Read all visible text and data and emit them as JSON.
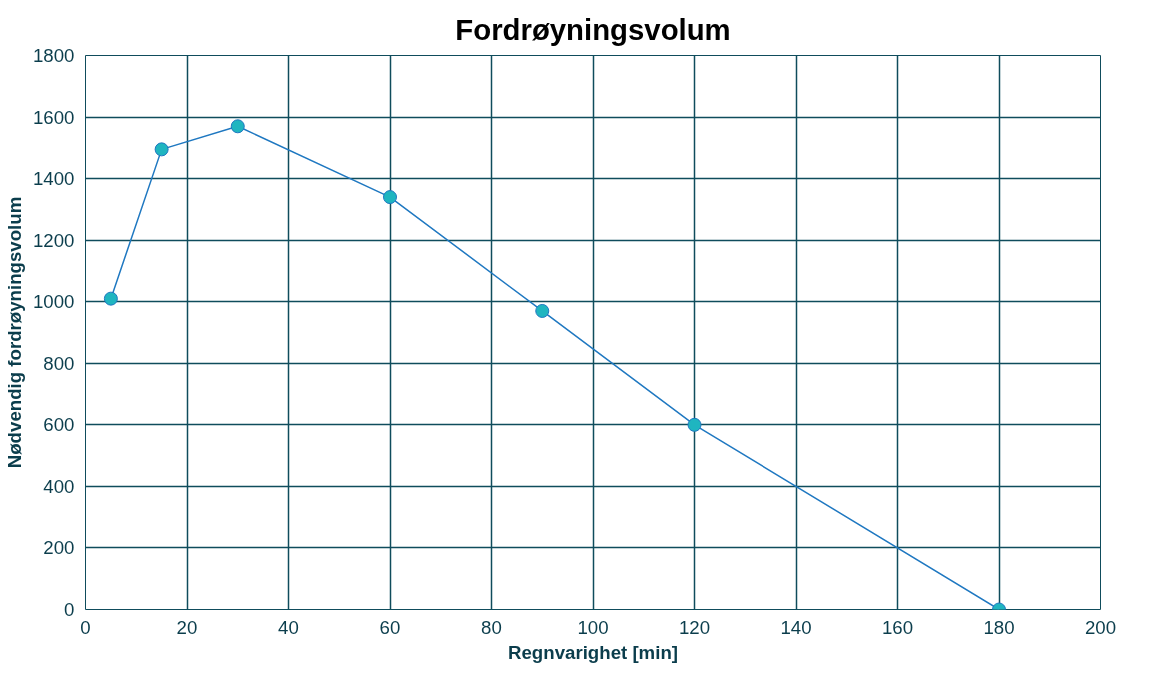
{
  "chart_data": {
    "type": "line",
    "title": "Fordrøyningsvolum",
    "xlabel": "Regnvarighet [min]",
    "ylabel": "Nødvendig fordrøyningsvolum",
    "x": [
      5,
      15,
      30,
      60,
      90,
      120,
      180
    ],
    "series": [
      {
        "color": "#1f78c1",
        "colors": [
          "#1fb5c0",
          "#1fb5c0",
          "#1fb5c0",
          "#1fb5c0",
          "#1fb5c0",
          "#1fb5c0",
          "#1fb5c0"
        ],
        "values": [
          1010,
          1495,
          1570,
          1340,
          970,
          600,
          0
        ]
      }
    ],
    "xlim": [
      0,
      200
    ],
    "xticks": [
      0,
      20,
      40,
      60,
      80,
      100,
      120,
      140,
      160,
      180,
      200
    ],
    "ylim": [
      0,
      1800
    ],
    "yticks": [
      0,
      200,
      400,
      600,
      800,
      1000,
      1200,
      1400,
      1600,
      1800
    ],
    "grid": true,
    "marker": "circle",
    "line_style": "solid"
  }
}
